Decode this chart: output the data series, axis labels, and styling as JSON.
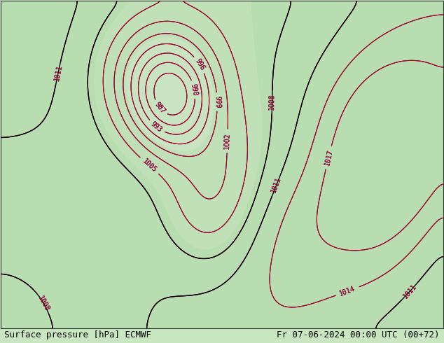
{
  "title_left": "Surface pressure [hPa] ECMWF",
  "title_right": "Fr 07-06-2024 00:00 UTC (00+72)",
  "bg_color": "#c8e6c0",
  "land_color": "#c8e6c0",
  "sea_color": "#a8d4f0",
  "contour_color_blue": "#0000cc",
  "contour_color_red": "#cc0000",
  "contour_color_black": "#000000",
  "label_fontsize": 7,
  "title_fontsize": 9,
  "figsize": [
    6.34,
    4.9
  ],
  "dpi": 100
}
